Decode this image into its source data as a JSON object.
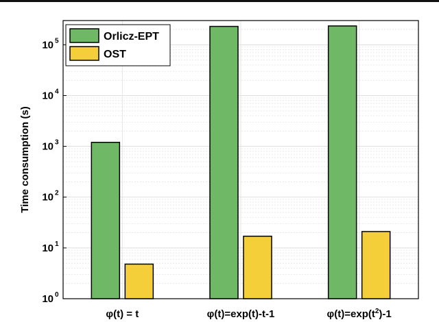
{
  "chart_data": {
    "type": "bar",
    "scale": "log",
    "ylabel": "Time consumption (s)",
    "ylim": [
      1,
      300000
    ],
    "yticks": [
      {
        "value": 1,
        "base": "10",
        "exp": "0"
      },
      {
        "value": 10,
        "base": "10",
        "exp": "1"
      },
      {
        "value": 100,
        "base": "10",
        "exp": "2"
      },
      {
        "value": 1000,
        "base": "10",
        "exp": "3"
      },
      {
        "value": 10000,
        "base": "10",
        "exp": "4"
      },
      {
        "value": 100000,
        "base": "10",
        "exp": "5"
      }
    ],
    "categories": [
      {
        "pre": "φ(t) = t",
        "sup": "",
        "post": ""
      },
      {
        "pre": "φ(t)=exp(t)-t-1",
        "sup": "",
        "post": ""
      },
      {
        "pre": "φ(t)=exp(t",
        "sup": "2",
        "post": ")-1"
      }
    ],
    "series": [
      {
        "name": "Orlicz-EPT",
        "color": "#6fb865",
        "values": [
          1200,
          230000,
          235000
        ]
      },
      {
        "name": "OST",
        "color": "#f5cf3a",
        "values": [
          4.8,
          17,
          21
        ]
      }
    ],
    "grid": true,
    "legend": "top-left"
  }
}
